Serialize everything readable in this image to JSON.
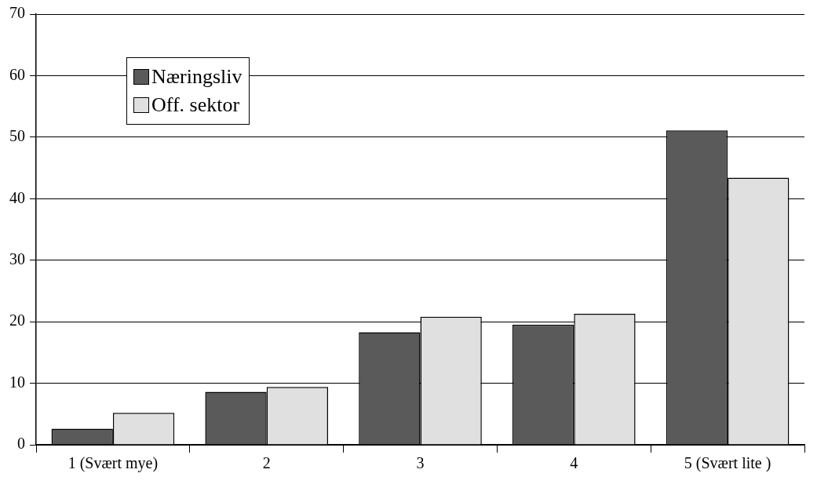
{
  "chart_data": {
    "type": "bar",
    "categories": [
      "1 (Svært mye)",
      "2",
      "3",
      "4",
      "5 (Svært lite )"
    ],
    "series": [
      {
        "name": "Næringsliv",
        "color": "#5a5a5a",
        "values": [
          2.6,
          8.6,
          18.3,
          19.5,
          51.1
        ]
      },
      {
        "name": "Off. sektor",
        "color": "#e0e0e0",
        "values": [
          5.2,
          9.4,
          20.8,
          21.3,
          43.4
        ]
      }
    ],
    "ylim": [
      0,
      70
    ],
    "yticks": [
      0,
      10,
      20,
      30,
      40,
      50,
      60,
      70
    ],
    "grid": "y",
    "legend": "top left"
  }
}
